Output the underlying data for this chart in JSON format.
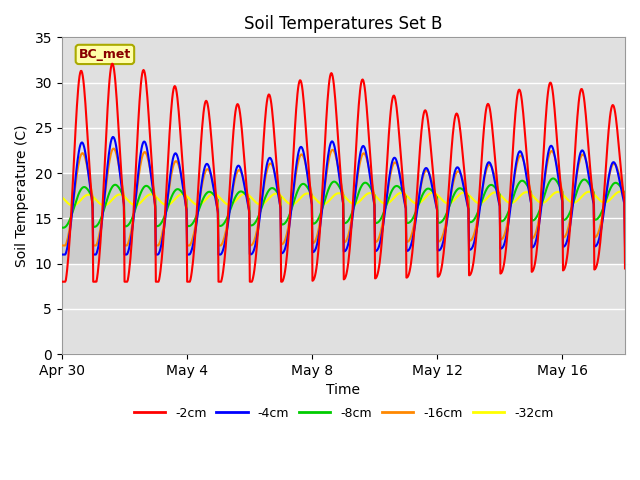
{
  "title": "Soil Temperatures Set B",
  "xlabel": "Time",
  "ylabel": "Soil Temperature (C)",
  "ylim": [
    0,
    35
  ],
  "yticks": [
    0,
    5,
    10,
    15,
    20,
    25,
    30,
    35
  ],
  "annotation": "BC_met",
  "series_labels": [
    "-2cm",
    "-4cm",
    "-8cm",
    "-16cm",
    "-32cm"
  ],
  "series_colors": [
    "#ff0000",
    "#0000ff",
    "#00cc00",
    "#ff8800",
    "#ffff00"
  ],
  "line_width": 1.5,
  "background_color": "#ffffff",
  "plot_bg_color": "#e0e0e0",
  "band_color": "#cccccc",
  "band_y1": 10,
  "band_y2": 20,
  "x_tick_labels": [
    "Apr 30",
    "May 4",
    "May 8",
    "May 12",
    "May 16"
  ],
  "x_tick_positions": [
    0,
    4,
    8,
    12,
    16
  ],
  "n_days": 18,
  "pts_per_day": 48
}
